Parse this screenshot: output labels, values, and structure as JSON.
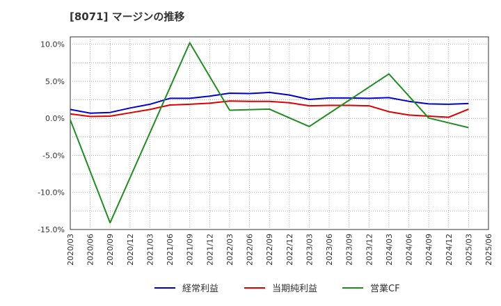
{
  "chart_data": {
    "type": "line",
    "title": "[8071]  マージンの推移",
    "xlabel": "",
    "ylabel": "",
    "ylim": [
      -15,
      11
    ],
    "yticks": [
      10,
      5,
      0,
      -5,
      -10,
      -15
    ],
    "ytick_labels": [
      "10.0%",
      "5.0%",
      "0.0%",
      "-5.0%",
      "-10.0%",
      "-15.0%"
    ],
    "x": [
      "2020/03",
      "2020/06",
      "2020/09",
      "2020/12",
      "2021/03",
      "2021/06",
      "2021/09",
      "2021/12",
      "2022/03",
      "2022/06",
      "2022/09",
      "2022/12",
      "2023/03",
      "2023/06",
      "2023/09",
      "2023/12",
      "2024/03",
      "2024/06",
      "2024/09",
      "2024/12",
      "2025/03",
      "2025/06"
    ],
    "grid": true,
    "legend_position": "bottom",
    "series": [
      {
        "name": "経常利益",
        "color": "#0000cc",
        "values": [
          1.2,
          0.7,
          0.8,
          1.4,
          1.9,
          2.7,
          2.7,
          3.0,
          3.4,
          3.35,
          3.5,
          3.15,
          2.55,
          2.75,
          2.75,
          2.7,
          2.8,
          2.3,
          1.95,
          1.9,
          2.0,
          null
        ]
      },
      {
        "name": "当期純利益",
        "color": "#dd0000",
        "values": [
          0.6,
          0.25,
          0.3,
          0.75,
          1.2,
          1.8,
          1.9,
          2.05,
          2.35,
          2.3,
          2.3,
          2.1,
          1.7,
          1.75,
          1.75,
          1.7,
          0.9,
          0.45,
          0.3,
          0.15,
          1.25,
          null
        ]
      },
      {
        "name": "営業CF",
        "color": "#228b22",
        "values": [
          -0.2,
          null,
          -14.1,
          null,
          null,
          null,
          10.2,
          null,
          1.1,
          null,
          1.25,
          null,
          -1.1,
          null,
          null,
          null,
          6.0,
          null,
          0.05,
          null,
          -1.25,
          null
        ]
      }
    ]
  }
}
